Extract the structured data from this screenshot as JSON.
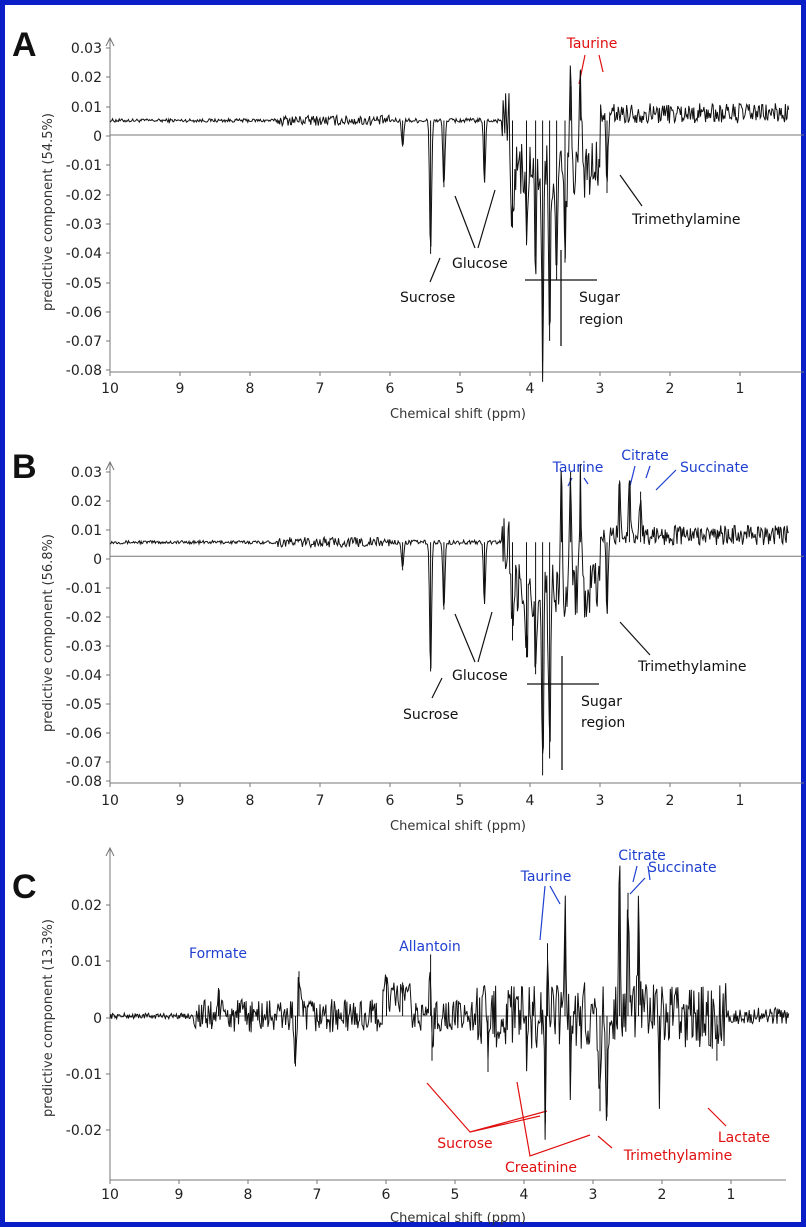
{
  "colors": {
    "frame": "#0a1ec8",
    "spectrum": "#111111",
    "axis": "#777777",
    "label_black": "#111111",
    "label_blue": "#1f3fd0",
    "label_red": "#e01010"
  },
  "chart_data": [
    {
      "type": "line",
      "panel": "A",
      "xlabel": "Chemical shift (ppm)",
      "ylabel": "predictive component (54.5%)",
      "xlim": [
        10,
        0.3
      ],
      "ylim": [
        -0.08,
        0.035
      ],
      "x_ticks": [
        "10",
        "9",
        "8",
        "7",
        "6",
        "5",
        "4",
        "3",
        "2",
        "1"
      ],
      "y_ticks": [
        "0.03",
        "0.02",
        "0.01",
        "0",
        "-0.01",
        "-0.02",
        "-0.03",
        "-0.04",
        "-0.05",
        "-0.06",
        "-0.07",
        "-0.08"
      ],
      "baseline": 0.005,
      "annotations": [
        {
          "text": "Taurine",
          "color": "red",
          "x": 3.6,
          "y": 0.03
        },
        {
          "text": "Trimethylamine",
          "color": "black",
          "x": 2.3,
          "y": -0.027
        },
        {
          "text": "Glucose",
          "color": "black",
          "x": 5.0,
          "y": -0.047
        },
        {
          "text": "Sucrose",
          "color": "black",
          "x": 5.6,
          "y": -0.056
        },
        {
          "text": "Sugar region",
          "color": "black",
          "x": 3.3,
          "y": -0.058
        }
      ],
      "peaks": [
        {
          "x": 5.82,
          "y": -0.004
        },
        {
          "x": 5.42,
          "y": -0.041
        },
        {
          "x": 5.23,
          "y": -0.018
        },
        {
          "x": 4.65,
          "y": -0.016
        },
        {
          "x": 4.25,
          "y": -0.032
        },
        {
          "x": 4.05,
          "y": -0.038
        },
        {
          "x": 3.92,
          "y": -0.042
        },
        {
          "x": 3.82,
          "y": -0.078
        },
        {
          "x": 3.72,
          "y": -0.071
        },
        {
          "x": 3.62,
          "y": -0.05
        },
        {
          "x": 3.5,
          "y": -0.044
        },
        {
          "x": 3.42,
          "y": 0.017
        },
        {
          "x": 3.28,
          "y": 0.022
        },
        {
          "x": 2.9,
          "y": -0.02
        }
      ]
    },
    {
      "type": "line",
      "panel": "B",
      "xlabel": "Chemical shift (ppm)",
      "ylabel": "predictive component (56.8%)",
      "xlim": [
        10,
        0.3
      ],
      "ylim": [
        -0.08,
        0.035
      ],
      "x_ticks": [
        "10",
        "9",
        "8",
        "7",
        "6",
        "5",
        "4",
        "3",
        "2",
        "1"
      ],
      "y_ticks": [
        "0.03",
        "0.02",
        "0.01",
        "0",
        "-0.01",
        "-0.02",
        "-0.03",
        "-0.04",
        "-0.05",
        "-0.06",
        "-0.07",
        "-0.08"
      ],
      "baseline": 0.005,
      "annotations": [
        {
          "text": "Taurine",
          "color": "blue",
          "x": 3.55,
          "y": 0.033
        },
        {
          "text": "Citrate",
          "color": "blue",
          "x": 2.75,
          "y": 0.031
        },
        {
          "text": "Succinate",
          "color": "blue",
          "x": 1.9,
          "y": 0.03
        },
        {
          "text": "Trimethylamine",
          "color": "black",
          "x": 2.3,
          "y": -0.033
        },
        {
          "text": "Glucose",
          "color": "black",
          "x": 4.9,
          "y": -0.043
        },
        {
          "text": "Sucrose",
          "color": "black",
          "x": 5.6,
          "y": -0.057
        },
        {
          "text": "Sugar region",
          "color": "black",
          "x": 3.2,
          "y": -0.06
        }
      ],
      "peaks": [
        {
          "x": 5.82,
          "y": -0.005
        },
        {
          "x": 5.42,
          "y": -0.041
        },
        {
          "x": 5.23,
          "y": -0.019
        },
        {
          "x": 4.65,
          "y": -0.017
        },
        {
          "x": 4.25,
          "y": -0.03
        },
        {
          "x": 4.05,
          "y": -0.036
        },
        {
          "x": 3.92,
          "y": -0.042
        },
        {
          "x": 3.82,
          "y": -0.078
        },
        {
          "x": 3.72,
          "y": -0.072
        },
        {
          "x": 3.55,
          "y": 0.027
        },
        {
          "x": 3.42,
          "y": 0.03
        },
        {
          "x": 3.28,
          "y": 0.031
        },
        {
          "x": 2.9,
          "y": -0.02
        },
        {
          "x": 2.72,
          "y": 0.027
        },
        {
          "x": 2.58,
          "y": 0.027
        },
        {
          "x": 2.42,
          "y": 0.023
        }
      ]
    },
    {
      "type": "line",
      "panel": "C",
      "xlabel": "Chemical shift (ppm)",
      "ylabel": "predictive component (13.3%)",
      "xlim": [
        10,
        0.3
      ],
      "ylim": [
        -0.025,
        0.025
      ],
      "x_ticks": [
        "10",
        "9",
        "8",
        "7",
        "6",
        "5",
        "4",
        "3",
        "2",
        "1"
      ],
      "y_ticks": [
        "0.02",
        "0.01",
        "0",
        "-0.01",
        "-0.02"
      ],
      "baseline": 0.0,
      "annotations": [
        {
          "text": "Formate",
          "color": "blue",
          "x": 8.45,
          "y": 0.0095
        },
        {
          "text": "Allantoin",
          "color": "blue",
          "x": 5.4,
          "y": 0.0145
        },
        {
          "text": "Taurine",
          "color": "blue",
          "x": 3.6,
          "y": 0.0255
        },
        {
          "text": "Citrate",
          "color": "blue",
          "x": 2.75,
          "y": 0.0285
        },
        {
          "text": "Succinate",
          "color": "blue",
          "x": 1.9,
          "y": 0.0265
        },
        {
          "text": "Lactate",
          "color": "red",
          "x": 1.1,
          "y": -0.014
        },
        {
          "text": "Sucrose",
          "color": "red",
          "x": 4.5,
          "y": -0.0175
        },
        {
          "text": "Creatinine",
          "color": "red",
          "x": 3.6,
          "y": -0.0225
        },
        {
          "text": "Trimethylamine",
          "color": "red",
          "x": 2.2,
          "y": -0.021
        }
      ],
      "peaks": [
        {
          "x": 8.45,
          "y": 0.005
        },
        {
          "x": 7.35,
          "y": -0.009
        },
        {
          "x": 7.3,
          "y": 0.008
        },
        {
          "x": 6.05,
          "y": 0.007
        },
        {
          "x": 5.82,
          "y": 0.006
        },
        {
          "x": 5.42,
          "y": 0.011
        },
        {
          "x": 5.4,
          "y": -0.008
        },
        {
          "x": 4.6,
          "y": -0.01
        },
        {
          "x": 4.05,
          "y": -0.007
        },
        {
          "x": 3.78,
          "y": -0.019
        },
        {
          "x": 3.75,
          "y": 0.013
        },
        {
          "x": 3.5,
          "y": 0.019
        },
        {
          "x": 3.42,
          "y": -0.01
        },
        {
          "x": 3.0,
          "y": -0.017
        },
        {
          "x": 2.9,
          "y": -0.018
        },
        {
          "x": 2.72,
          "y": 0.023
        },
        {
          "x": 2.6,
          "y": 0.022
        },
        {
          "x": 2.45,
          "y": 0.02
        },
        {
          "x": 2.15,
          "y": -0.012
        },
        {
          "x": 1.33,
          "y": -0.008
        }
      ]
    }
  ],
  "panels": {
    "A": {
      "letter": "A",
      "xlabel": "Chemical shift (ppm)",
      "ylabel": "predictive component (54.5%)",
      "x_ticks": [
        "10",
        "9",
        "8",
        "7",
        "6",
        "5",
        "4",
        "3",
        "2",
        "1"
      ],
      "y_ticks": [
        "0.03",
        "0.02",
        "0.01",
        "0",
        "-0.01",
        "-0.02",
        "-0.03",
        "-0.04",
        "-0.05",
        "-0.06",
        "-0.07",
        "-0.08"
      ],
      "labels": {
        "taurine": "Taurine",
        "trimethylamine": "Trimethylamine",
        "glucose": "Glucose",
        "sucrose": "Sucrose",
        "sugar_line1": "Sugar",
        "sugar_line2": "region"
      }
    },
    "B": {
      "letter": "B",
      "xlabel": "Chemical shift (ppm)",
      "ylabel": "predictive component (56.8%)",
      "x_ticks": [
        "10",
        "9",
        "8",
        "7",
        "6",
        "5",
        "4",
        "3",
        "2",
        "1"
      ],
      "y_ticks": [
        "0.03",
        "0.02",
        "0.01",
        "0",
        "-0.01",
        "-0.02",
        "-0.03",
        "-0.04",
        "-0.05",
        "-0.06",
        "-0.07",
        "-0.08"
      ],
      "labels": {
        "taurine": "Taurine",
        "citrate": "Citrate",
        "succinate": "Succinate",
        "trimethylamine": "Trimethylamine",
        "glucose": "Glucose",
        "sucrose": "Sucrose",
        "sugar_line1": "Sugar",
        "sugar_line2": "region"
      }
    },
    "C": {
      "letter": "C",
      "xlabel": "Chemical shift (ppm)",
      "ylabel": "predictive component (13.3%)",
      "x_ticks": [
        "10",
        "9",
        "8",
        "7",
        "6",
        "5",
        "4",
        "3",
        "2",
        "1"
      ],
      "y_ticks": [
        "0.02",
        "0.01",
        "0",
        "-0.01",
        "-0.02"
      ],
      "labels": {
        "formate": "Formate",
        "allantoin": "Allantoin",
        "taurine": "Taurine",
        "citrate": "Citrate",
        "succinate": "Succinate",
        "lactate": "Lactate",
        "sucrose": "Sucrose",
        "creatinine": "Creatinine",
        "trimethylamine": "Trimethylamine"
      }
    }
  }
}
